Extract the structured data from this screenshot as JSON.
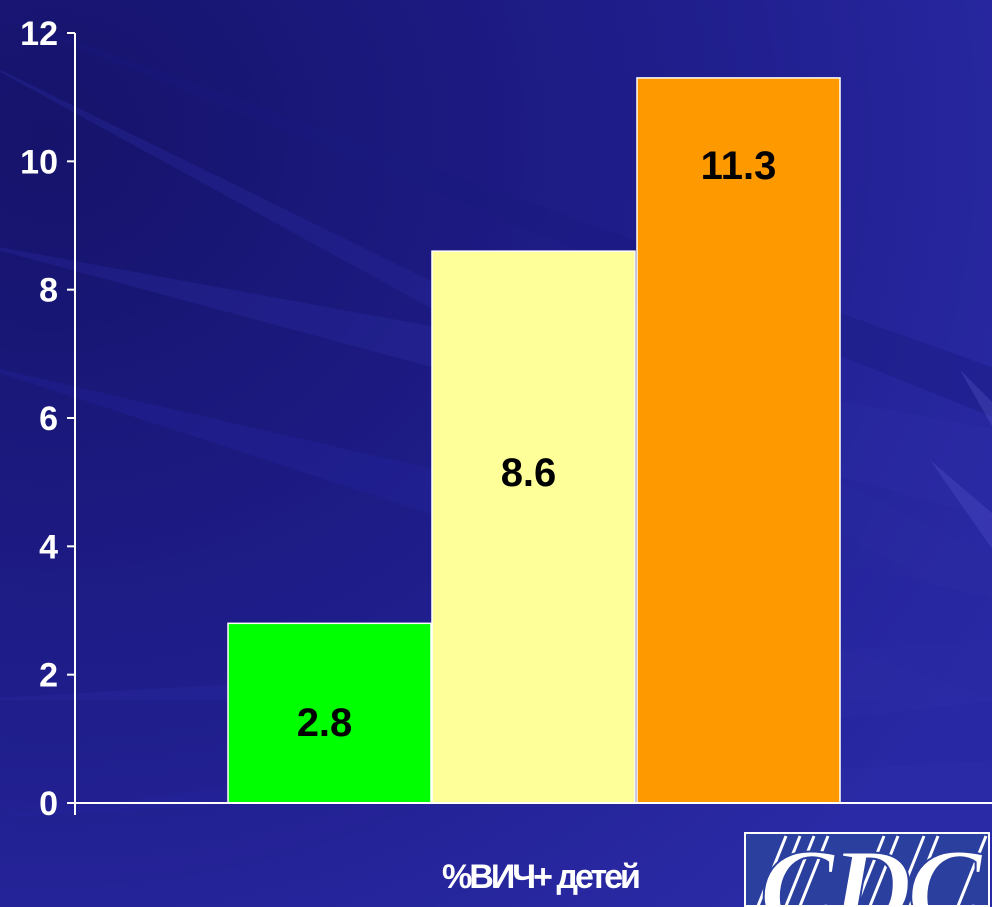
{
  "chart_data": {
    "type": "bar",
    "categories": [
      "",
      "",
      ""
    ],
    "values": [
      2.8,
      8.6,
      11.3
    ],
    "data_labels": [
      "2.8",
      "8.6",
      "11.3"
    ],
    "colors": [
      "#00ff00",
      "#ffff99",
      "#ff9900"
    ],
    "xlabel": "%ВИЧ+ детей",
    "ylabel": "",
    "ylim": [
      0,
      12
    ],
    "yticks": [
      "0",
      "2",
      "4",
      "6",
      "8",
      "10",
      "12"
    ],
    "grid": false,
    "legend": "none"
  },
  "logo": {
    "text": "CDC"
  },
  "colors": {
    "background": "#1f1d8a",
    "axis": "#ffffff",
    "text": "#ffffff"
  }
}
